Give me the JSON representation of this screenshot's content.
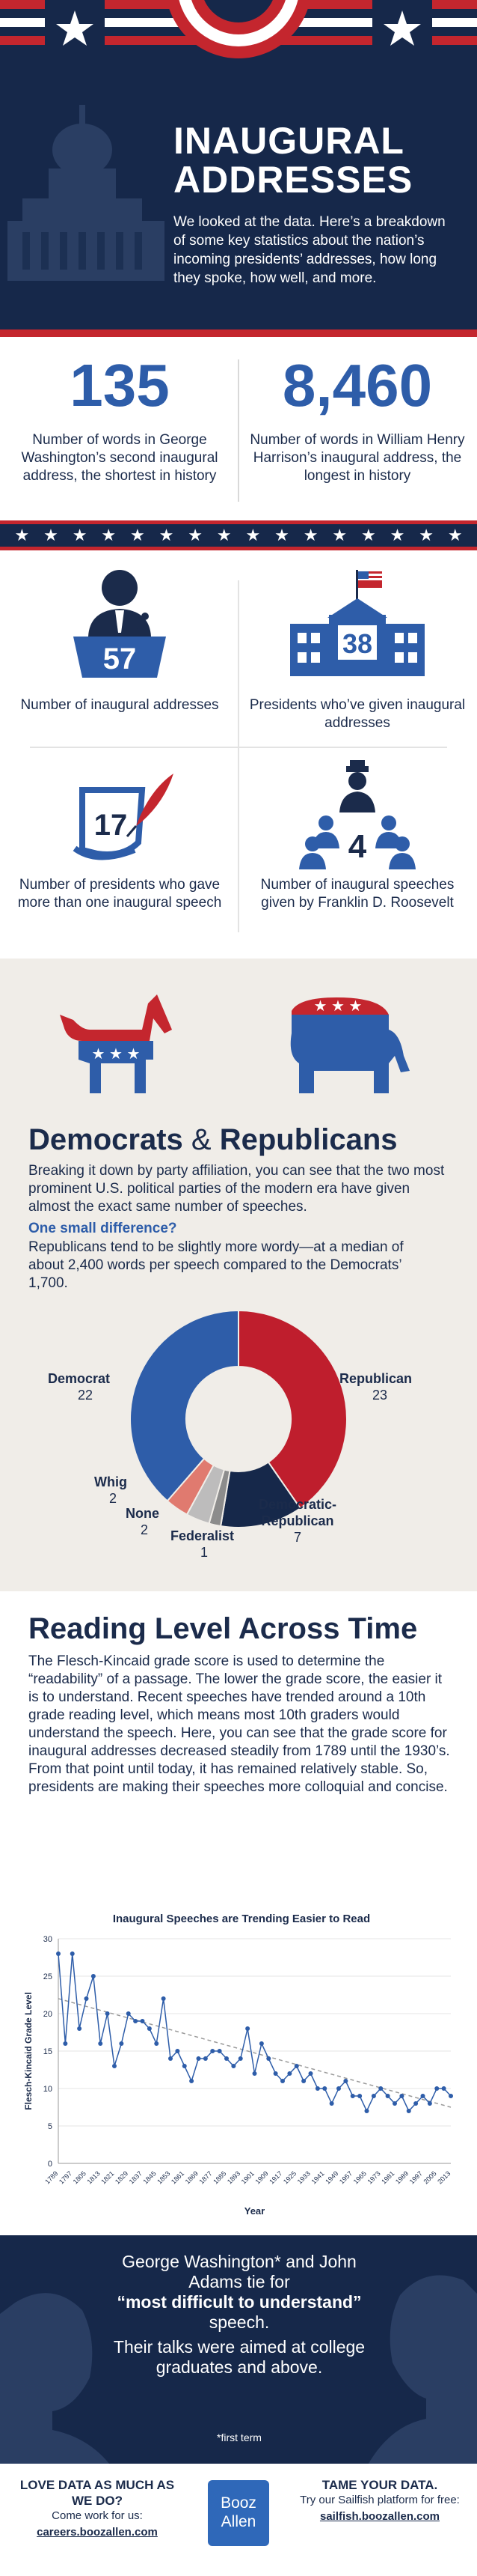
{
  "header": {
    "title_line1": "INAUGURAL",
    "title_line2": "ADDRESSES",
    "subtitle": "We looked at the data. Here’s a breakdown of some key statistics about the nation’s incoming presidents’ addresses, how long they spoke, how well, and more."
  },
  "stats": [
    {
      "value": "135",
      "label": "Number of words in George Washington’s second inaugural address, the shortest in history"
    },
    {
      "value": "8,460",
      "label": "Number of words in William Henry Harrison’s inaugural address, the longest in history"
    }
  ],
  "icons": [
    {
      "value": "57",
      "label": "Number of inaugural addresses",
      "icon": "podium-speaker-icon"
    },
    {
      "value": "38",
      "label": "Presidents who’ve given inaugural addresses",
      "icon": "white-house-icon"
    },
    {
      "value": "17",
      "label": "Number of presidents who gave more than one inaugural speech",
      "icon": "quill-document-icon"
    },
    {
      "value": "4",
      "label": "Number of inaugural speeches given by Franklin D. Roosevelt",
      "icon": "fdr-audience-icon"
    }
  ],
  "parties": {
    "title_a": "Democrats",
    "amp": "&",
    "title_b": "Republicans",
    "body": "Breaking it down by party affiliation, you can see that the two most prominent U.S. political parties of the modern era have given almost the exact same number of speeches.",
    "question": "One small difference?",
    "body2": "Republicans tend to be slightly more wordy—at a median of about 2,400 words per speech compared to the Democrats’ 1,700.",
    "labels": {
      "democrat": "Democrat",
      "democrat_v": "22",
      "republican": "Republican",
      "republican_v": "23",
      "whig": "Whig",
      "whig_v": "2",
      "none": "None",
      "none_v": "2",
      "federalist": "Federalist",
      "federalist_v": "1",
      "demrep_a": "Democratic-",
      "demrep_b": "Republican",
      "demrep_v": "7"
    },
    "colors": {
      "democrat": "#2e5da9",
      "republican": "#bf1e2d",
      "whig": "#e07a6f",
      "none": "#bdbcbc",
      "federalist": "#8c8c8c",
      "demrep": "#16284a"
    }
  },
  "reading": {
    "title": "Reading Level Across Time",
    "body": "The Flesch-Kincaid grade score is used to determine the “readability” of a passage. The lower the grade score, the easier it is to understand. Recent speeches have trended around a 10th grade reading level, which means most 10th graders would understand the speech. Here, you can see that the grade score for inaugural addresses decreased steadily from 1789 until the 1930’s. From that point until today, it has remained relatively stable. So, presidents are making their speeches more colloquial and concise."
  },
  "chart_data": {
    "type": "line",
    "title": "Inaugural Speeches are Trending Easier to Read",
    "xlabel": "Year",
    "ylabel": "Flesch-Kincaid Grade Level",
    "ylim": [
      0,
      30
    ],
    "yticks": [
      0,
      5,
      10,
      15,
      20,
      25,
      30
    ],
    "xticks": [
      "1789",
      "1797",
      "1805",
      "1813",
      "1821",
      "1829",
      "1837",
      "1845",
      "1853",
      "1861",
      "1869",
      "1877",
      "1885",
      "1893",
      "1901",
      "1909",
      "1917",
      "1925",
      "1933",
      "1941",
      "1949",
      "1957",
      "1965",
      "1973",
      "1981",
      "1989",
      "1997",
      "2005",
      "2013"
    ],
    "x": [
      1789,
      1793,
      1797,
      1801,
      1805,
      1809,
      1813,
      1817,
      1821,
      1825,
      1829,
      1833,
      1837,
      1841,
      1845,
      1849,
      1853,
      1857,
      1861,
      1865,
      1869,
      1873,
      1877,
      1881,
      1885,
      1889,
      1893,
      1897,
      1901,
      1905,
      1909,
      1913,
      1917,
      1921,
      1925,
      1929,
      1933,
      1937,
      1941,
      1945,
      1949,
      1953,
      1957,
      1961,
      1965,
      1969,
      1973,
      1977,
      1981,
      1985,
      1989,
      1993,
      1997,
      2001,
      2005,
      2009,
      2013
    ],
    "values": [
      28,
      16,
      28,
      18,
      22,
      25,
      16,
      20,
      13,
      16,
      20,
      19,
      19,
      18,
      16,
      22,
      14,
      15,
      13,
      11,
      14,
      14,
      15,
      15,
      14,
      13,
      14,
      18,
      12,
      16,
      14,
      12,
      11,
      12,
      13,
      11,
      12,
      10,
      10,
      8,
      10,
      11,
      9,
      9,
      7,
      9,
      10,
      9,
      8,
      9,
      7,
      8,
      9,
      8,
      10,
      10,
      9
    ],
    "trend": [
      [
        1789,
        22
      ],
      [
        2013,
        7.5
      ]
    ]
  },
  "quote": {
    "line1": "George Washington* and John Adams tie for",
    "bold": "“most difficult to understand”",
    "line2": "speech.",
    "line3": "Their talks were aimed at college graduates and above.",
    "footnote": "*first term"
  },
  "footer": {
    "left_heading": "LOVE DATA AS MUCH AS WE DO?",
    "left_text": "Come work for us:",
    "left_url": "careers.boozallen.com",
    "logo_line1": "Booz",
    "logo_line2": "Allen",
    "right_heading": "TAME YOUR DATA.",
    "right_text": "Try our Sailfish platform for free:",
    "right_url": "sailfish.boozallen.com"
  }
}
